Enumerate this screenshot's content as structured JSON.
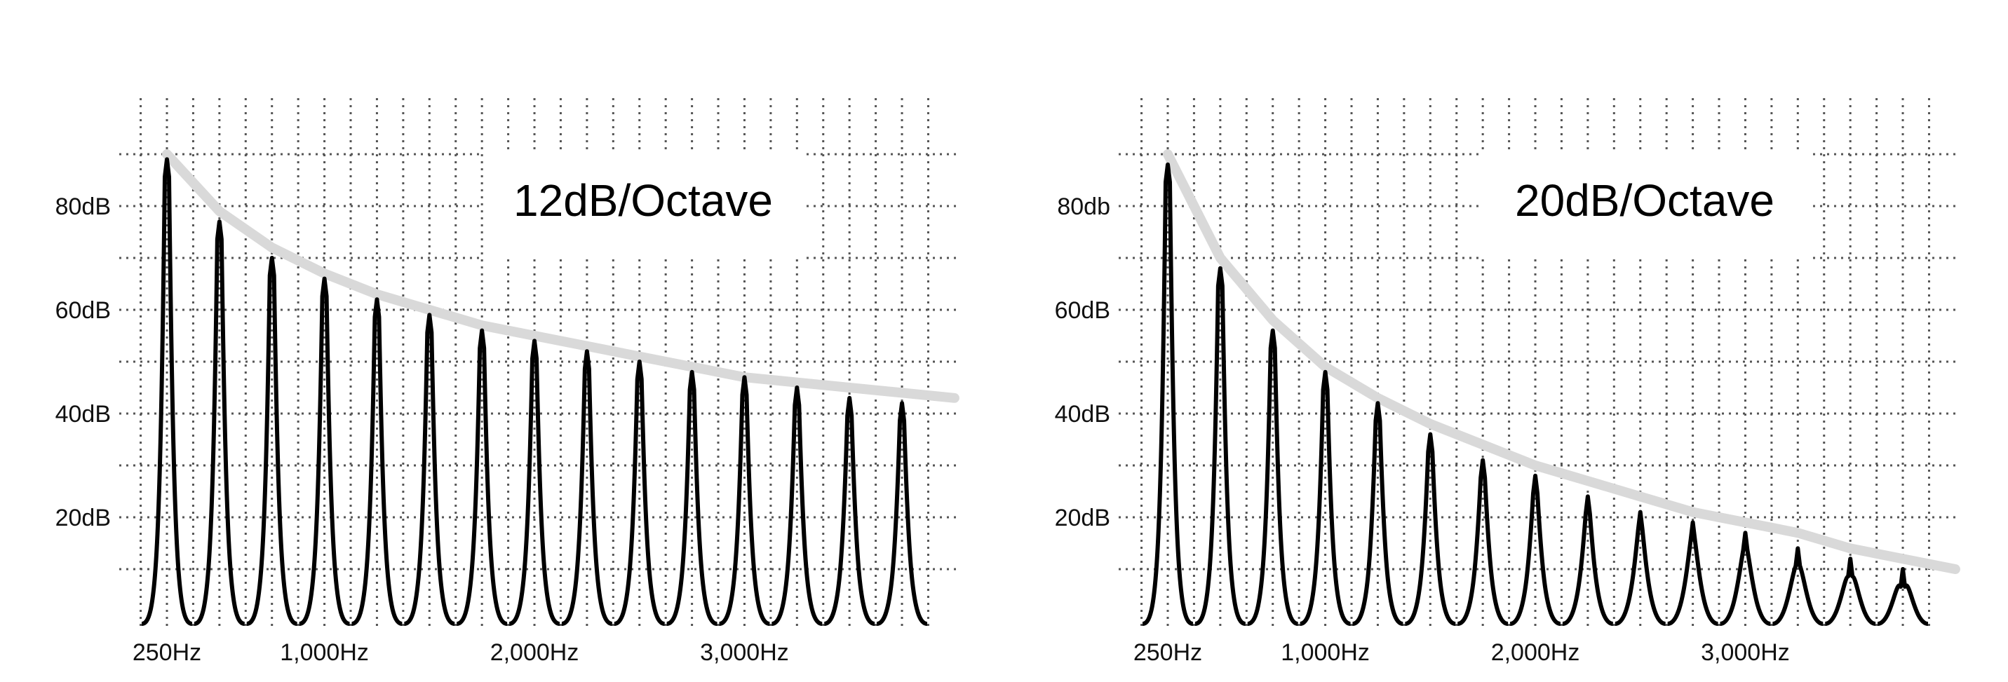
{
  "chart_data": [
    {
      "type": "line",
      "title": "12dB/Octave",
      "x_tick_labels": [
        "250Hz",
        "1,000Hz",
        "2,000Hz",
        "3,000Hz"
      ],
      "x_ticks_hz": [
        250,
        1000,
        2000,
        3000
      ],
      "y_tick_labels": [
        "20dB",
        "40dB",
        "60dB",
        "80dB"
      ],
      "y_ticks_db": [
        20,
        40,
        60,
        80
      ],
      "xlim": [
        150,
        4000
      ],
      "ylim": [
        0,
        100
      ],
      "grid": true,
      "harmonics": {
        "x": [
          250,
          500,
          750,
          1000,
          1250,
          1500,
          1750,
          2000,
          2250,
          2500,
          2750,
          3000,
          3250,
          3500,
          3750
        ],
        "y": [
          89,
          77,
          70,
          66,
          62,
          59,
          56,
          54,
          52,
          50,
          48,
          47,
          45,
          43,
          42
        ]
      },
      "envelope": {
        "x": [
          250,
          500,
          750,
          1000,
          1250,
          1500,
          1750,
          2000,
          2250,
          2500,
          2750,
          3000,
          3250,
          3500,
          3750,
          4000
        ],
        "y": [
          90,
          79,
          72,
          67,
          63,
          60,
          57,
          55,
          53,
          51,
          49,
          47,
          46,
          45,
          44,
          43
        ]
      },
      "colors": {
        "harmonics": "#000000",
        "envelope": "#d9d9d9"
      }
    },
    {
      "type": "line",
      "title": "20dB/Octave",
      "x_tick_labels": [
        "250Hz",
        "1,000Hz",
        "2,000Hz",
        "3,000Hz"
      ],
      "x_ticks_hz": [
        250,
        1000,
        2000,
        3000
      ],
      "y_tick_labels": [
        "20dB",
        "40dB",
        "60dB",
        "80db"
      ],
      "y_ticks_db": [
        20,
        40,
        60,
        80
      ],
      "xlim": [
        150,
        4000
      ],
      "ylim": [
        0,
        100
      ],
      "grid": true,
      "harmonics": {
        "x": [
          250,
          500,
          750,
          1000,
          1250,
          1500,
          1750,
          2000,
          2250,
          2500,
          2750,
          3000,
          3250,
          3500,
          3750
        ],
        "y": [
          88,
          68,
          56,
          48,
          42,
          36,
          31,
          28,
          24,
          21,
          19,
          17,
          14,
          12,
          10
        ]
      },
      "envelope": {
        "x": [
          250,
          500,
          750,
          1000,
          1250,
          1500,
          1750,
          2000,
          2250,
          2500,
          2750,
          3000,
          3250,
          3500,
          3750,
          4000
        ],
        "y": [
          90,
          70,
          58,
          49,
          43,
          38,
          34,
          30,
          27,
          24,
          21,
          19,
          17,
          14,
          12,
          10
        ]
      },
      "colors": {
        "harmonics": "#000000",
        "envelope": "#d9d9d9"
      }
    }
  ]
}
